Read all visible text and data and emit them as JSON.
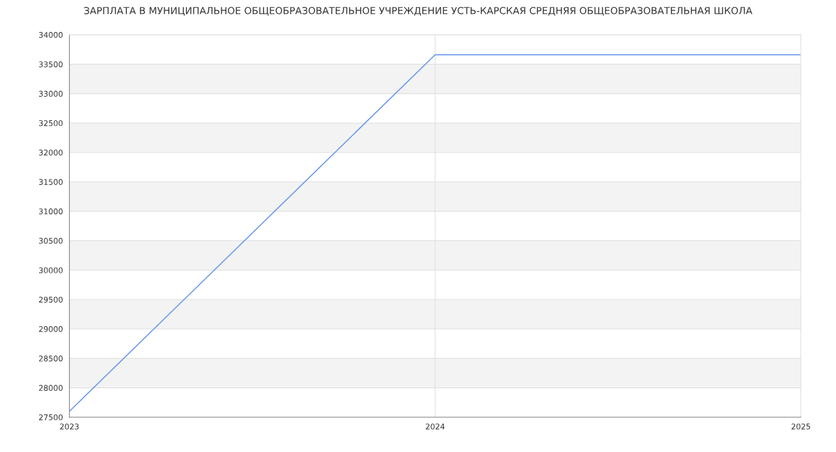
{
  "chart_data": {
    "type": "line",
    "title": "ЗАРПЛАТА В МУНИЦИПАЛЬНОЕ ОБЩЕОБРАЗОВАТЕЛЬНОЕ УЧРЕЖДЕНИЕ УСТЬ-КАРСКАЯ СРЕДНЯЯ ОБЩЕОБРАЗОВАТЕЛЬНАЯ ШКОЛА",
    "x": [
      2023,
      2024,
      2025
    ],
    "series": [
      {
        "color": "#6495ed",
        "values": [
          27600,
          33660,
          33660
        ]
      }
    ],
    "xlim": [
      2023,
      2025
    ],
    "xticks": [
      2023,
      2024,
      2025
    ],
    "ylim": [
      27500,
      34000
    ],
    "yticks": [
      27500,
      28000,
      28500,
      29000,
      29500,
      30000,
      30500,
      31000,
      31500,
      32000,
      32500,
      33000,
      33500,
      34000
    ],
    "grid": true,
    "marker": "none",
    "line_style": "solid"
  }
}
